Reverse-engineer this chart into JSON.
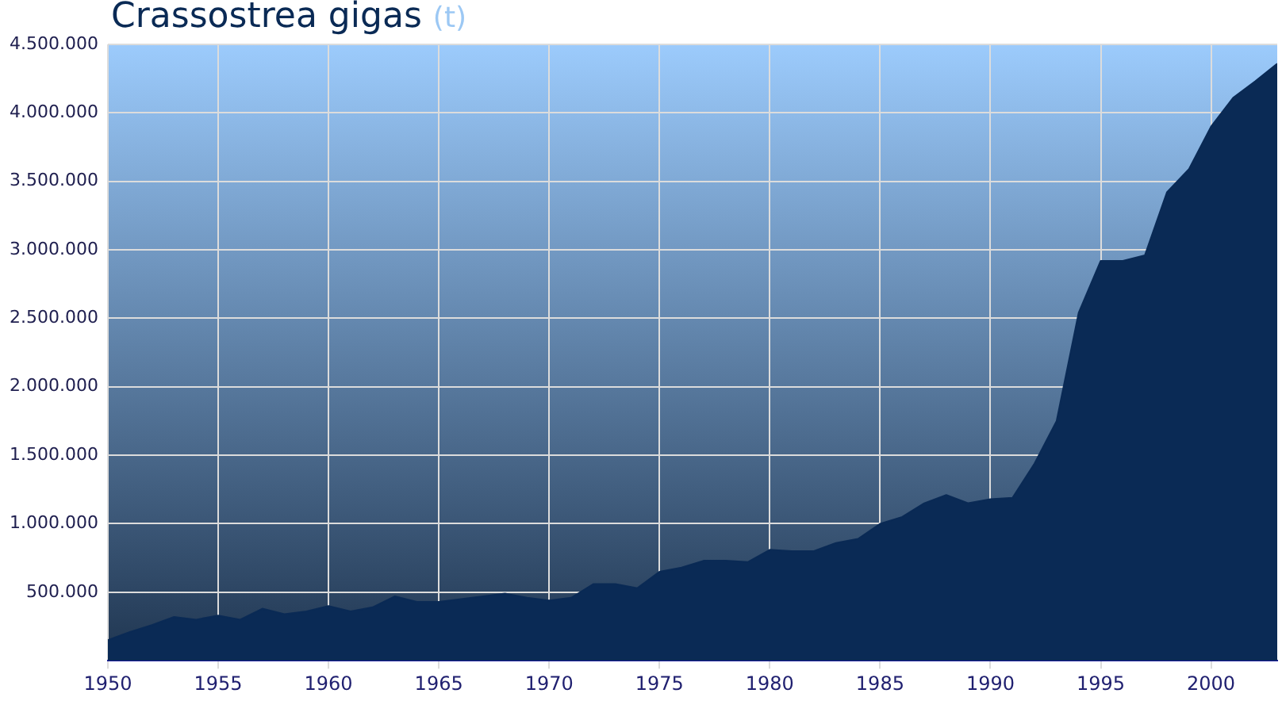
{
  "chart_data": {
    "type": "area",
    "title": "Crassostrea gigas",
    "ylabel": "(t)",
    "x": [
      1950,
      1951,
      1952,
      1953,
      1954,
      1955,
      1956,
      1957,
      1958,
      1959,
      1960,
      1961,
      1962,
      1963,
      1964,
      1965,
      1966,
      1967,
      1968,
      1969,
      1970,
      1971,
      1972,
      1973,
      1974,
      1975,
      1976,
      1977,
      1978,
      1979,
      1980,
      1981,
      1982,
      1983,
      1984,
      1985,
      1986,
      1987,
      1988,
      1989,
      1990,
      1991,
      1992,
      1993,
      1994,
      1995,
      1996,
      1997,
      1998,
      1999,
      2000,
      2001,
      2002,
      2003
    ],
    "series": [
      {
        "color": "#0a2a55",
        "values": [
          150000,
          210000,
          260000,
          320000,
          300000,
          330000,
          300000,
          380000,
          340000,
          360000,
          400000,
          360000,
          390000,
          470000,
          430000,
          430000,
          450000,
          470000,
          490000,
          460000,
          440000,
          460000,
          560000,
          560000,
          530000,
          650000,
          680000,
          730000,
          730000,
          720000,
          810000,
          800000,
          800000,
          860000,
          890000,
          1000000,
          1050000,
          1150000,
          1210000,
          1150000,
          1180000,
          1190000,
          1440000,
          1750000,
          2540000,
          2920000,
          2920000,
          2960000,
          3420000,
          3590000,
          3900000,
          4110000,
          4230000,
          4360000
        ]
      }
    ],
    "xlim": [
      1950,
      2003
    ],
    "xticks": [
      1950,
      1955,
      1960,
      1965,
      1970,
      1975,
      1980,
      1985,
      1990,
      1995,
      2000
    ],
    "ylim": [
      0,
      4500000
    ],
    "yticks": [
      {
        "value": 500000,
        "label": "500.000"
      },
      {
        "value": 1000000,
        "label": "1.000.000"
      },
      {
        "value": 1500000,
        "label": "1.500.000"
      },
      {
        "value": 2000000,
        "label": "2.000.000"
      },
      {
        "value": 2500000,
        "label": "2.500.000"
      },
      {
        "value": 3000000,
        "label": "3.000.000"
      },
      {
        "value": 3500000,
        "label": "3.500.000"
      },
      {
        "value": 4000000,
        "label": "4.000.000"
      },
      {
        "value": 4500000,
        "label": "4.500.000"
      }
    ],
    "grid": true,
    "legend": false
  }
}
